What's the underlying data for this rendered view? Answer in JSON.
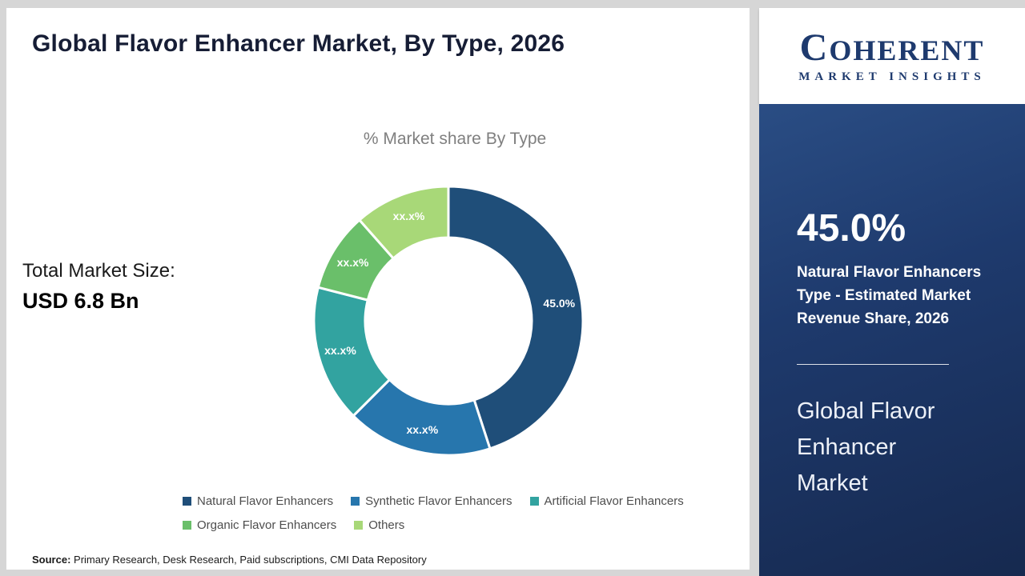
{
  "header": {
    "title": "Global Flavor Enhancer Market, By Type, 2026"
  },
  "logo": {
    "line1": "COHERENT",
    "line2": "MARKET INSIGHTS"
  },
  "main": {
    "chart_title": "% Market share By Type",
    "total_label": "Total Market Size:",
    "total_value": "USD 6.8 Bn",
    "source_label": "Source:",
    "source_text": " Primary Research, Desk Research, Paid subscriptions, CMI Data Repository"
  },
  "chart_data": {
    "type": "pie",
    "donut": true,
    "title": "% Market share By Type",
    "categories": [
      "Natural Flavor Enhancers",
      "Synthetic Flavor Enhancers",
      "Artificial Flavor Enhancers",
      "Organic Flavor Enhancers",
      "Others"
    ],
    "labels": [
      "45.0%",
      "xx.x%",
      "xx.x%",
      "xx.x%",
      "xx.x%"
    ],
    "values": [
      45.0,
      17.5,
      16.5,
      9.5,
      11.5
    ],
    "values_note": "Only the 45.0% share is shown in the image; other slice sizes are estimated from arc angles and their labels are masked as xx.x%",
    "colors": [
      "#1f4e79",
      "#2776ad",
      "#32a3a0",
      "#6abf6a",
      "#a8d878"
    ],
    "legend_position": "bottom",
    "start_angle_deg": 0
  },
  "sidebar": {
    "stat_value": "45.0%",
    "stat_caption": "Natural Flavor Enhancers Type - Estimated Market Revenue Share, 2026",
    "panel_title": "Global Flavor Enhancer Market",
    "panel_color": "#1e3a6d"
  }
}
